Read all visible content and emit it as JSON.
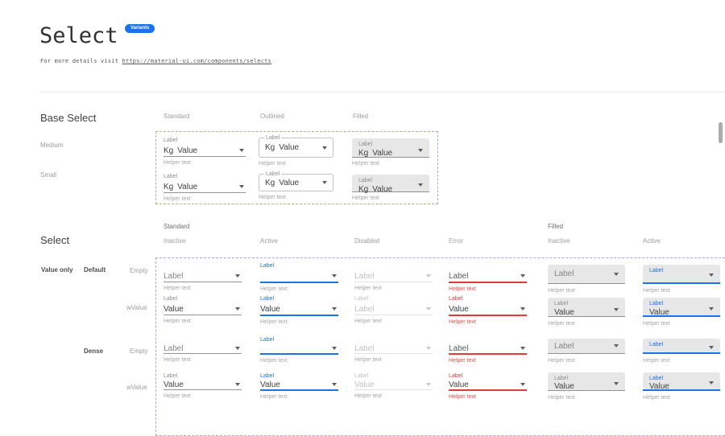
{
  "header": {
    "title": "Select",
    "badge": "Variants",
    "subtitle_prefix": "For more details visit ",
    "subtitle_link": "https://material-ui.com/components/selects"
  },
  "base_select": {
    "heading": "Base Select",
    "column_headers": [
      "Standard",
      "Outlined",
      "Filled"
    ],
    "row_labels": [
      "Medium",
      "Small"
    ],
    "field": {
      "label": "Label",
      "prefix": "Kg",
      "value": "Value",
      "helper": "Helper text"
    }
  },
  "select": {
    "heading": "Select",
    "group_headers": [
      "Standard",
      "Filled"
    ],
    "standard_column_headers": [
      "Inactive",
      "Active",
      "Disabled",
      "Error"
    ],
    "filled_column_headers": [
      "Inactive",
      "Active"
    ],
    "category_label": "Value only",
    "density_labels": [
      "Default",
      "Dense"
    ],
    "row_labels": [
      "Empty",
      "wValue"
    ],
    "field": {
      "label": "Label",
      "value": "Value",
      "helper": "Helper text",
      "disabled_value": "Label"
    }
  },
  "colors": {
    "accent_blue": "#1a73e8",
    "error_red": "#e53935",
    "filled_gray": "#e7e7e7",
    "badge_blue": "#1a73e8",
    "dashed_outline": "#9faae6"
  },
  "icons": {
    "dropdown": "caret-down"
  }
}
